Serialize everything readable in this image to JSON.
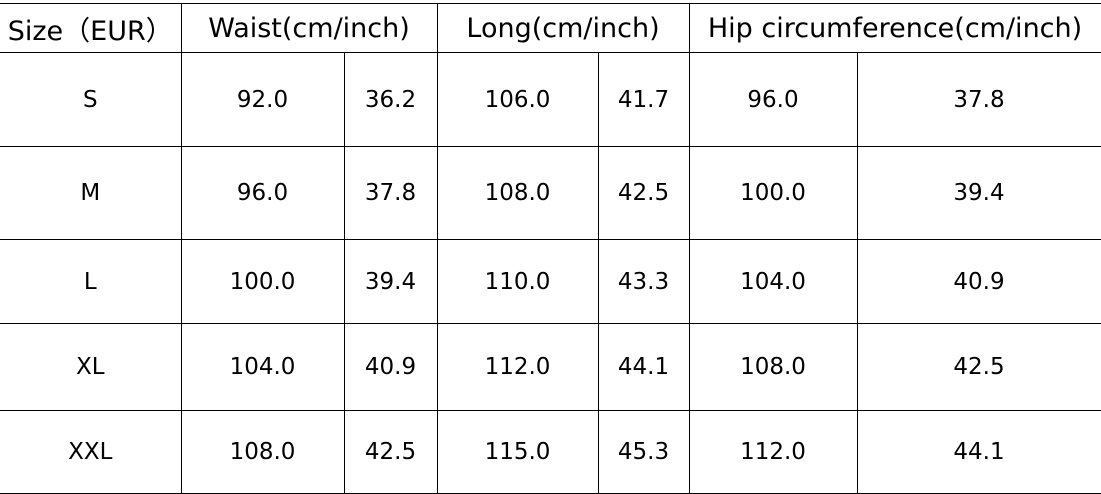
{
  "headers": [
    "Size（EUR）",
    "Waist(cm/inch)",
    "Long(cm/inch)",
    "Hip circumference(cm/inch)"
  ],
  "rows": [
    [
      "S",
      "92.0",
      "36.2",
      "106.0",
      "41.7",
      "96.0",
      "37.8"
    ],
    [
      "M",
      "96.0",
      "37.8",
      "108.0",
      "42.5",
      "100.0",
      "39.4"
    ],
    [
      "L",
      "100.0",
      "39.4",
      "110.0",
      "43.3",
      "104.0",
      "40.9"
    ],
    [
      "XL",
      "104.0",
      "40.9",
      "112.0",
      "44.1",
      "108.0",
      "42.5"
    ],
    [
      "XXL",
      "108.0",
      "42.5",
      "115.0",
      "45.3",
      "112.0",
      "44.1"
    ]
  ]
}
